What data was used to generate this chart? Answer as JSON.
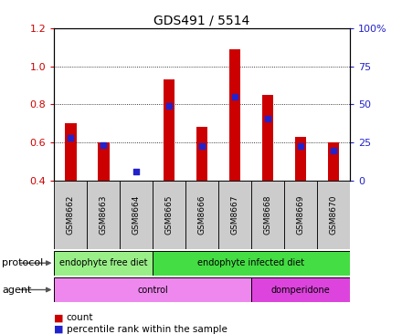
{
  "title": "GDS491 / 5514",
  "samples": [
    "GSM8662",
    "GSM8663",
    "GSM8664",
    "GSM8665",
    "GSM8666",
    "GSM8667",
    "GSM8668",
    "GSM8669",
    "GSM8670"
  ],
  "count_values": [
    0.7,
    0.6,
    0.4,
    0.93,
    0.68,
    1.09,
    0.85,
    0.63,
    0.6
  ],
  "percentile_values": [
    0.625,
    0.585,
    0.445,
    0.79,
    0.582,
    0.84,
    0.725,
    0.58,
    0.555
  ],
  "ylim": [
    0.4,
    1.2
  ],
  "yticks_left": [
    0.4,
    0.6,
    0.8,
    1.0,
    1.2
  ],
  "yticks_right_vals": [
    0,
    25,
    50,
    75,
    100
  ],
  "bar_color": "#cc0000",
  "dot_color": "#2222cc",
  "bar_bottom": 0.4,
  "protocol_groups": [
    {
      "label": "endophyte free diet",
      "start": 0,
      "end": 3,
      "color": "#99ee88"
    },
    {
      "label": "endophyte infected diet",
      "start": 3,
      "end": 9,
      "color": "#44dd44"
    }
  ],
  "agent_groups": [
    {
      "label": "control",
      "start": 0,
      "end": 6,
      "color": "#ee88ee"
    },
    {
      "label": "domperidone",
      "start": 6,
      "end": 9,
      "color": "#dd44dd"
    }
  ],
  "legend_count_color": "#cc0000",
  "legend_pct_color": "#2222cc",
  "bg_color": "#ffffff",
  "tick_color_left": "#cc0000",
  "tick_color_right": "#2222cc",
  "sample_bg_color": "#cccccc",
  "protocol_label": "protocol",
  "agent_label": "agent",
  "bar_width": 0.35
}
